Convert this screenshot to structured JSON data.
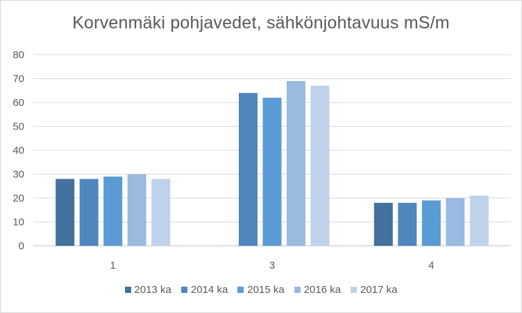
{
  "chart_data": {
    "type": "bar",
    "title": "Korvenmäki pohjavedet, sähkönjohtavuus mS/m",
    "xlabel": "",
    "ylabel": "",
    "categories": [
      "1",
      "3",
      "4"
    ],
    "ylim": [
      0,
      80
    ],
    "yticks": [
      0,
      10,
      20,
      30,
      40,
      50,
      60,
      70,
      80
    ],
    "grid": true,
    "legend_position": "bottom",
    "series": [
      {
        "name": "2013 ka",
        "values": [
          28,
          null,
          18
        ],
        "color": "#44719d"
      },
      {
        "name": "2014 ka",
        "values": [
          28,
          64,
          18
        ],
        "color": "#4f86bd"
      },
      {
        "name": "2015 ka",
        "values": [
          29,
          62,
          19
        ],
        "color": "#5b9bd5"
      },
      {
        "name": "2016 ka",
        "values": [
          30,
          69,
          20
        ],
        "color": "#9bbae0"
      },
      {
        "name": "2017 ka",
        "values": [
          28,
          67,
          21
        ],
        "color": "#bfd2eb"
      }
    ]
  },
  "colors": {
    "gridline": "#d9d9d9",
    "axis": "#bfbfbf",
    "text": "#595959"
  }
}
